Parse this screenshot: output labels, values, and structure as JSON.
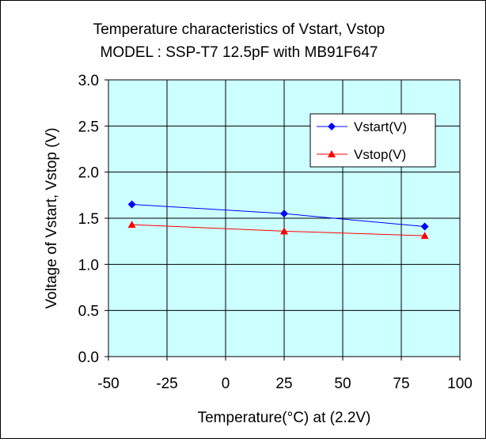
{
  "chart_data": {
    "type": "line",
    "title_line1": "Temperature characteristics of Vstart, Vstop",
    "title_line2": "MODEL : SSP-T7 12.5pF with MB91F647",
    "xlabel": "Temperature(°C)   at  (2.2V)",
    "ylabel": "Voltage of Vstart,  Vstop (V)",
    "xlim": [
      -50,
      100
    ],
    "ylim": [
      0,
      3.0
    ],
    "xticks": [
      -50,
      -25,
      0,
      25,
      50,
      75,
      100
    ],
    "yticks": [
      0.0,
      0.5,
      1.0,
      1.5,
      2.0,
      2.5,
      3.0
    ],
    "x_tick_labels": [
      "-50",
      "-25",
      "0",
      "25",
      "50",
      "75",
      "100"
    ],
    "y_tick_labels": [
      "0.0",
      "0.5",
      "1.0",
      "1.5",
      "2.0",
      "2.5",
      "3.0"
    ],
    "grid": true,
    "legend_position": "top-right",
    "plot_background": "#ccffff",
    "series": [
      {
        "name": "Vstart(V)",
        "color": "#0000ff",
        "marker": "diamond",
        "x": [
          -40,
          25,
          85
        ],
        "y": [
          1.65,
          1.55,
          1.41
        ]
      },
      {
        "name": "Vstop(V)",
        "color": "#ff0000",
        "marker": "triangle",
        "x": [
          -40,
          25,
          85
        ],
        "y": [
          1.43,
          1.36,
          1.31
        ]
      }
    ]
  }
}
